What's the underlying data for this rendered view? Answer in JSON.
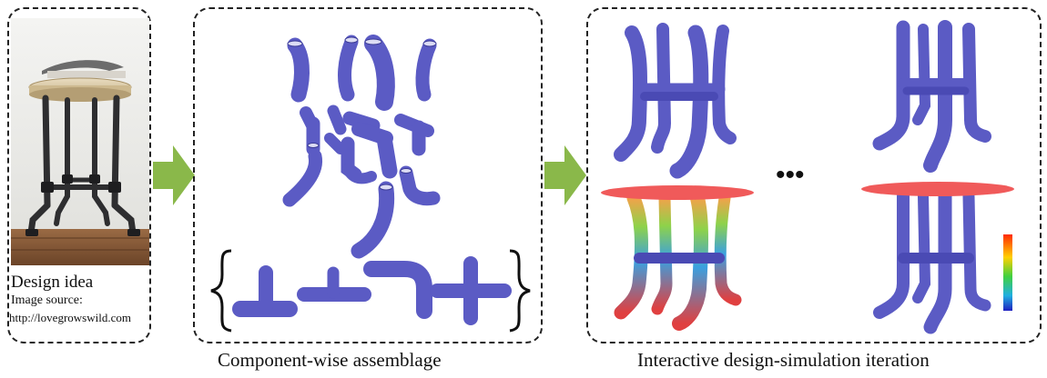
{
  "panels": {
    "design_idea": {
      "label": "Design idea",
      "source_label": "Image source:",
      "source_url": "http://lovegrowswild.com"
    },
    "assemblage": {
      "caption": "Component-wise assemblage"
    },
    "iteration": {
      "caption": "Interactive design-simulation iteration",
      "ellipsis": "•••"
    }
  },
  "colors": {
    "pipe": "#5b5bc4",
    "pipe_dark": "#3c3c96",
    "arrow": "#8ab84a",
    "tabletop": "#f05a5a",
    "dash_border": "#222222"
  },
  "icons": [
    "pipe-stool-photo",
    "arrow-right-icon",
    "tee-joint-icon",
    "cross-joint-icon",
    "elbow-joint-icon",
    "color-scale-bar"
  ]
}
